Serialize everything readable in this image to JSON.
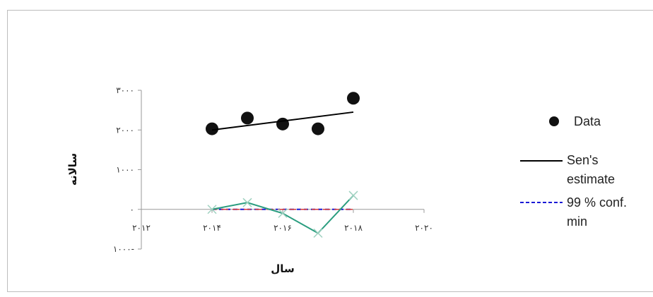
{
  "chart_data": {
    "type": "scatter",
    "title": "",
    "xlabel": "سال",
    "ylabel": "سالانه",
    "xlim": [
      2012,
      2020
    ],
    "ylim": [
      -1000,
      3000
    ],
    "x_ticks": [
      2012,
      2014,
      2016,
      2018,
      2020
    ],
    "x_tick_labels": [
      "۲۰۱۲",
      "۲۰۱۴",
      "۲۰۱۶",
      "۲۰۱۸",
      "۲۰۲۰"
    ],
    "y_ticks": [
      -1000,
      0,
      1000,
      2000,
      3000
    ],
    "y_tick_labels": [
      "۱۰۰۰-",
      "۰",
      "۱۰۰۰",
      "۲۰۰۰",
      "۳۰۰۰"
    ],
    "grid": false,
    "legend_position": "right",
    "series": [
      {
        "name": "Data",
        "kind": "points",
        "color": "#111111",
        "x": [
          2014,
          2015,
          2016,
          2017,
          2018
        ],
        "y": [
          2030,
          2300,
          2150,
          2030,
          2800
        ]
      },
      {
        "name": "Sen's estimate",
        "kind": "line",
        "color": "#000000",
        "x": [
          2014,
          2018
        ],
        "y": [
          2000,
          2450
        ]
      },
      {
        "name": "99 % conf. min",
        "kind": "dashed-line",
        "color": "#1a1ad6",
        "x": [
          2014,
          2018
        ],
        "y": [
          0,
          0
        ]
      },
      {
        "name": "",
        "kind": "line-markers",
        "color": "#2a9d7f",
        "x": [
          2014,
          2015,
          2016,
          2017,
          2018
        ],
        "y": [
          0,
          170,
          -100,
          -600,
          350
        ]
      }
    ],
    "legend": [
      {
        "label": "Data",
        "symbol": "dot"
      },
      {
        "label": "Sen's estimate",
        "symbol": "solid"
      },
      {
        "label": "99 % conf. min",
        "symbol": "dashed"
      }
    ]
  }
}
